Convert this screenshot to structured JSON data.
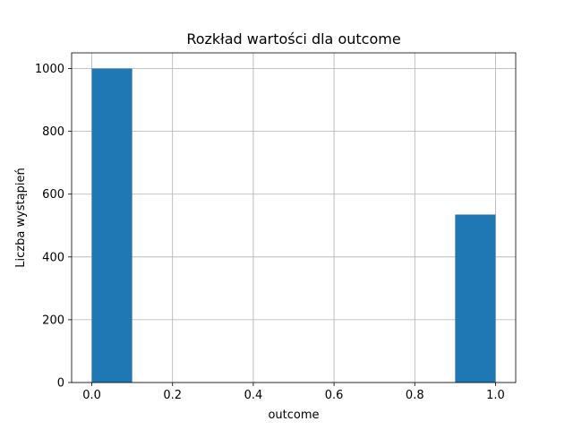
{
  "chart_data": {
    "type": "bar",
    "title": "Rozkład wartości dla outcome",
    "xlabel": "outcome",
    "ylabel": "Liczba wystąpień",
    "bins": [
      {
        "x0": 0.0,
        "x1": 0.1,
        "value": 1000
      },
      {
        "x0": 0.1,
        "x1": 0.2,
        "value": 0
      },
      {
        "x0": 0.2,
        "x1": 0.3,
        "value": 0
      },
      {
        "x0": 0.3,
        "x1": 0.4,
        "value": 0
      },
      {
        "x0": 0.4,
        "x1": 0.5,
        "value": 0
      },
      {
        "x0": 0.5,
        "x1": 0.6,
        "value": 0
      },
      {
        "x0": 0.6,
        "x1": 0.7,
        "value": 0
      },
      {
        "x0": 0.7,
        "x1": 0.8,
        "value": 0
      },
      {
        "x0": 0.8,
        "x1": 0.9,
        "value": 0
      },
      {
        "x0": 0.9,
        "x1": 1.0,
        "value": 535
      }
    ],
    "xlim": [
      -0.05,
      1.05
    ],
    "ylim": [
      0,
      1050
    ],
    "xticks": [
      "0.0",
      "0.2",
      "0.4",
      "0.6",
      "0.8",
      "1.0"
    ],
    "yticks": [
      "0",
      "200",
      "400",
      "600",
      "800",
      "1000"
    ],
    "grid": true,
    "bar_color": "#1f77b4"
  }
}
